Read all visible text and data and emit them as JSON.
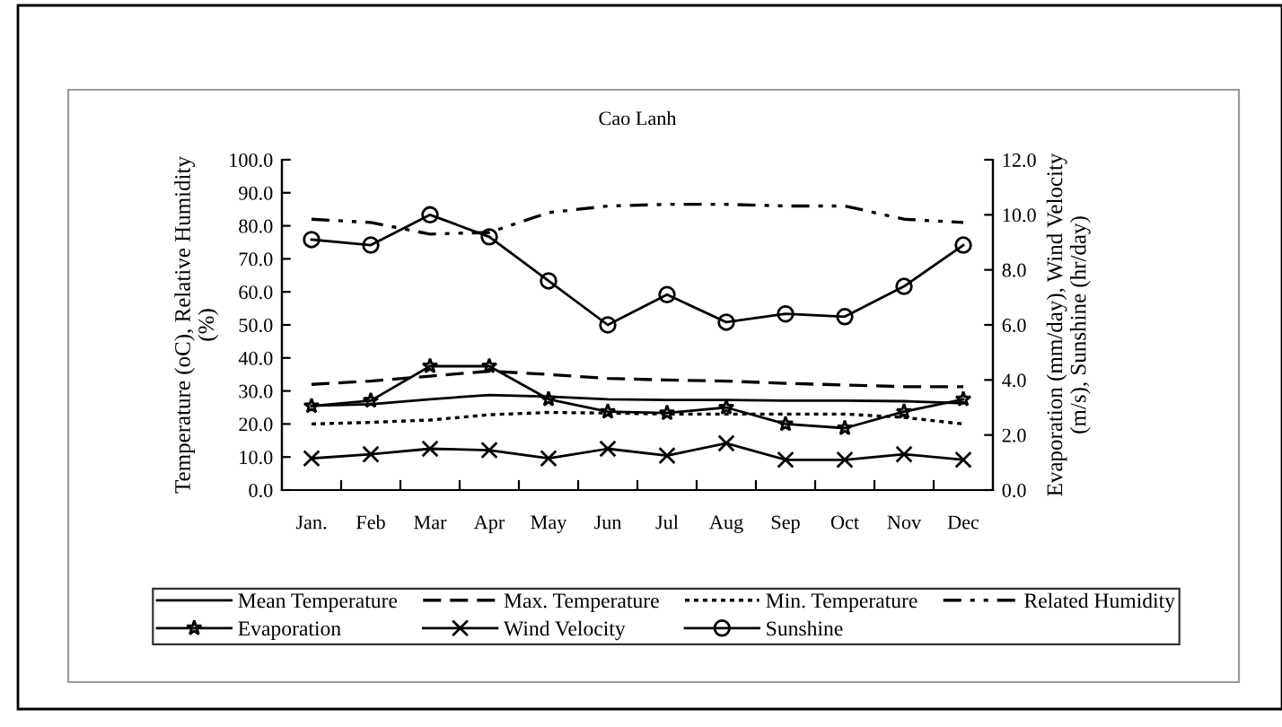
{
  "chart_data": {
    "type": "line",
    "title": "Cao Lanh",
    "ylabel": "Temperature (oC), Relative Humidity (%)",
    "y2label": "Evaporation (mm/day), Wind Velocity (m/s), Sunshine (hr/day)",
    "categories": [
      "Jan.",
      "Feb",
      "Mar",
      "Apr",
      "May",
      "Jun",
      "Jul",
      "Aug",
      "Sep",
      "Oct",
      "Nov",
      "Dec"
    ],
    "series": [
      {
        "name": "Mean Temperature",
        "color": "#000000",
        "line_style": "solid",
        "marker": "none",
        "values": [
          25.5,
          26,
          27.5,
          28.8,
          28.3,
          27.5,
          27.3,
          27.3,
          27.1,
          27.1,
          26.9,
          26.3
        ]
      },
      {
        "name": "Max. Temperature",
        "color": "#000000",
        "line_style": "dashed",
        "marker": "none",
        "values": [
          32,
          33,
          34.5,
          36,
          35,
          33.8,
          33.3,
          33,
          32.3,
          31.8,
          31.3,
          31.3
        ]
      },
      {
        "name": "Min. Temperature",
        "color": "#000000",
        "line_style": "dotted",
        "marker": "none",
        "values": [
          20,
          20.5,
          21.2,
          22.8,
          23.5,
          23.3,
          23,
          23,
          23,
          23,
          22,
          20
        ]
      },
      {
        "name": "Related Humidity",
        "color": "#000000",
        "line_style": "dashdot",
        "marker": "none",
        "values": [
          82,
          81,
          77.5,
          78,
          84,
          86,
          86.5,
          86.5,
          86,
          86,
          82,
          81
        ]
      },
      {
        "name": "Evaporation",
        "color": "#000000",
        "line_style": "solid",
        "marker": "star",
        "axis": "y2",
        "values": [
          3.05,
          3.25,
          4.5,
          4.5,
          3.3,
          2.85,
          2.8,
          3.0,
          2.4,
          2.25,
          2.85,
          3.3
        ]
      },
      {
        "name": "Wind Velocity",
        "color": "#000000",
        "line_style": "solid",
        "marker": "cross",
        "axis": "y2",
        "values": [
          1.15,
          1.3,
          1.5,
          1.45,
          1.15,
          1.5,
          1.25,
          1.7,
          1.1,
          1.1,
          1.3,
          1.1
        ]
      },
      {
        "name": "Sunshine",
        "color": "#000000",
        "line_style": "solid",
        "marker": "circle",
        "axis": "y2",
        "values": [
          9.1,
          8.9,
          10.0,
          9.2,
          7.6,
          6.0,
          7.1,
          6.1,
          6.4,
          6.3,
          7.4,
          8.9
        ]
      }
    ],
    "ylim": [
      0,
      100
    ],
    "yticks": [
      {
        "value": 0,
        "label": "0.0"
      },
      {
        "value": 10,
        "label": "10.0"
      },
      {
        "value": 20,
        "label": "20.0"
      },
      {
        "value": 30,
        "label": "30.0"
      },
      {
        "value": 40,
        "label": "40.0"
      },
      {
        "value": 50,
        "label": "50.0"
      },
      {
        "value": 60,
        "label": "60.0"
      },
      {
        "value": 70,
        "label": "70.0"
      },
      {
        "value": 80,
        "label": "80.0"
      },
      {
        "value": 90,
        "label": "90.0"
      },
      {
        "value": 100,
        "label": "100.0"
      }
    ],
    "y2lim": [
      0,
      12
    ],
    "y2ticks": [
      {
        "value": 0,
        "label": "0.0"
      },
      {
        "value": 2,
        "label": "2.0"
      },
      {
        "value": 4,
        "label": "4.0"
      },
      {
        "value": 6,
        "label": "6.0"
      },
      {
        "value": 8,
        "label": "8.0"
      },
      {
        "value": 10,
        "label": "10.0"
      },
      {
        "value": 12,
        "label": "12.0"
      }
    ],
    "grid": false,
    "legend": "bottom"
  }
}
